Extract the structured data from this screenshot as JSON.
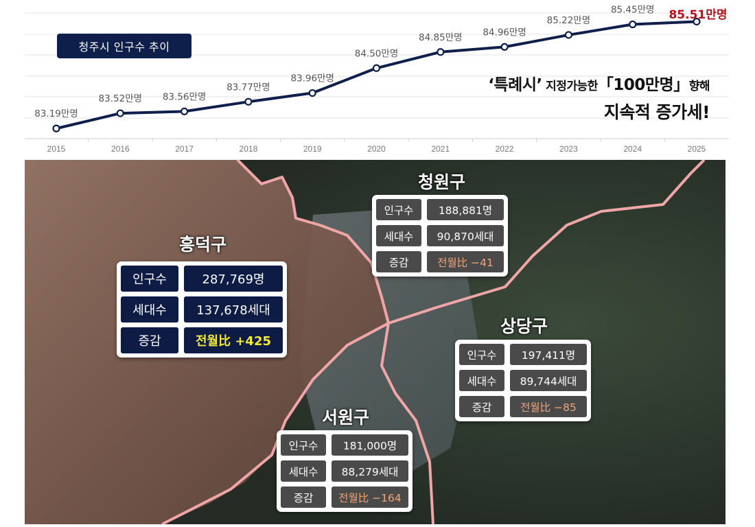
{
  "title": "청주시 인구수 추이",
  "slogan": {
    "open_quote": "‘",
    "special_city": "특례시",
    "close_quote": "’",
    "possible": " 지정가능한",
    "bracket_open": "「",
    "million": "100만명",
    "bracket_close": "」",
    "toward": "향해",
    "line2": "지속적 증가세!"
  },
  "chart_data": {
    "type": "line",
    "title": "청주시 인구수 추이",
    "categories": [
      "2015",
      "2016",
      "2017",
      "2018",
      "2019",
      "2020",
      "2021",
      "2022",
      "2023",
      "2024",
      "2025"
    ],
    "values": [
      83.19,
      83.52,
      83.56,
      83.77,
      83.96,
      84.5,
      84.85,
      84.96,
      85.22,
      85.45,
      85.51
    ],
    "labels": [
      "83.19만명",
      "83.52만명",
      "83.56만명",
      "83.77만명",
      "83.96만명",
      "84.50만명",
      "84.85만명",
      "84.96만명",
      "85.22만명",
      "85.45만명",
      "85.51만명"
    ],
    "unit": "만명",
    "ylim": [
      83.0,
      85.8
    ],
    "grid": true,
    "legend": "none",
    "line_color": "#0f1f4b",
    "highlight_color": "#b3121b"
  },
  "districts": [
    {
      "name": "흥덕구",
      "population_label": "인구수",
      "population": "287,769명",
      "households_label": "세대수",
      "households": "137,678세대",
      "change_label": "증감",
      "change": "전월比 +425"
    },
    {
      "name": "청원구",
      "population_label": "인구수",
      "population": "188,881명",
      "households_label": "세대수",
      "households": "90,870세대",
      "change_label": "증감",
      "change": "전월比 −41"
    },
    {
      "name": "상당구",
      "population_label": "인구수",
      "population": "197,411명",
      "households_label": "세대수",
      "households": "89,744세대",
      "change_label": "증감",
      "change": "전월比 −85"
    },
    {
      "name": "서원구",
      "population_label": "인구수",
      "population": "181,000명",
      "households_label": "세대수",
      "households": "88,279세대",
      "change_label": "증감",
      "change": "전월比 −164"
    }
  ],
  "colors": {
    "navy": "#0e1b45",
    "gray_cell": "#4a4a4a",
    "positive_change": "#f3ea37",
    "negative_change": "#f2a579",
    "boundary": "#f0a6a6"
  }
}
